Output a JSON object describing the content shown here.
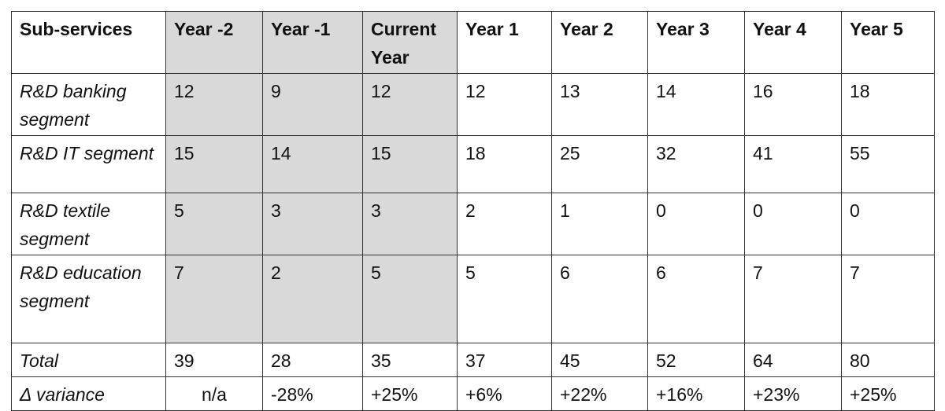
{
  "table": {
    "header": [
      "Sub-services",
      "Year -2",
      "Year -1",
      "Current Year",
      "Year 1",
      "Year 2",
      "Year 3",
      "Year 4",
      "Year 5"
    ],
    "rows": [
      [
        "R&D banking segment",
        12,
        9,
        12,
        12,
        13,
        14,
        16,
        18
      ],
      [
        "R&D IT segment",
        15,
        14,
        15,
        18,
        25,
        32,
        41,
        55
      ],
      [
        "R&D textile segment",
        5,
        3,
        3,
        2,
        1,
        0,
        0,
        0
      ],
      [
        "R&D education segment",
        7,
        2,
        5,
        5,
        6,
        6,
        7,
        7
      ],
      [
        "Total",
        39,
        28,
        35,
        37,
        45,
        52,
        64,
        80
      ],
      [
        "Δ variance",
        "n/a",
        "-28%",
        "+25%",
        "+6%",
        "+22%",
        "+16%",
        "+23%",
        "+25%"
      ]
    ]
  }
}
